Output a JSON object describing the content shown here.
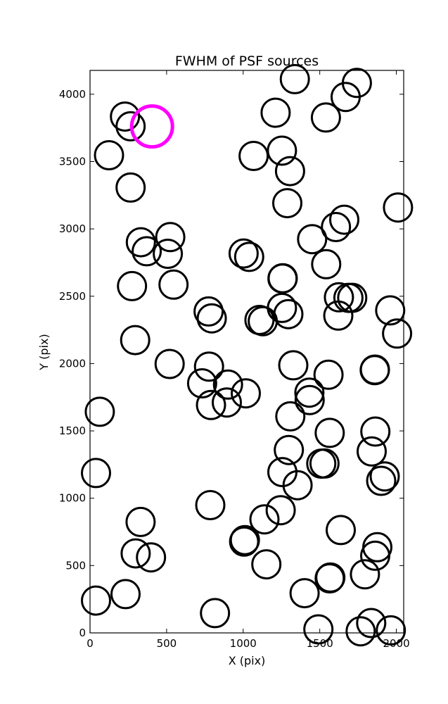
{
  "chart_data": {
    "type": "scatter",
    "title": "FWHM of PSF sources",
    "xlabel": "X (pix)",
    "ylabel": "Y (pix)",
    "xlim": [
      0,
      2048
    ],
    "ylim": [
      0,
      4177
    ],
    "grid": false,
    "legend": "none",
    "x_ticks": [
      0,
      500,
      1000,
      1500,
      2000
    ],
    "y_ticks": [
      0,
      500,
      1000,
      1500,
      2000,
      2500,
      3000,
      3500,
      4000
    ],
    "marker": "hollow circle",
    "series": [
      {
        "color": "#000000",
        "points": [
          {
            "x": 228,
            "y": 3834
          },
          {
            "x": 265,
            "y": 3762
          },
          {
            "x": 124,
            "y": 3547
          },
          {
            "x": 265,
            "y": 3307
          },
          {
            "x": 332,
            "y": 2901
          },
          {
            "x": 370,
            "y": 2834
          },
          {
            "x": 524,
            "y": 2939
          },
          {
            "x": 508,
            "y": 2815
          },
          {
            "x": 274,
            "y": 2575
          },
          {
            "x": 545,
            "y": 2586
          },
          {
            "x": 295,
            "y": 2174
          },
          {
            "x": 520,
            "y": 1997
          },
          {
            "x": 64,
            "y": 1642
          },
          {
            "x": 39,
            "y": 1187
          },
          {
            "x": 330,
            "y": 824
          },
          {
            "x": 298,
            "y": 590
          },
          {
            "x": 398,
            "y": 561
          },
          {
            "x": 232,
            "y": 288
          },
          {
            "x": 39,
            "y": 240
          },
          {
            "x": 774,
            "y": 2387
          },
          {
            "x": 795,
            "y": 2336
          },
          {
            "x": 732,
            "y": 1853
          },
          {
            "x": 777,
            "y": 1977
          },
          {
            "x": 790,
            "y": 1692
          },
          {
            "x": 901,
            "y": 1844
          },
          {
            "x": 893,
            "y": 1711
          },
          {
            "x": 1017,
            "y": 1779
          },
          {
            "x": 785,
            "y": 949
          },
          {
            "x": 1003,
            "y": 2817
          },
          {
            "x": 1039,
            "y": 2792
          },
          {
            "x": 1068,
            "y": 3542
          },
          {
            "x": 1011,
            "y": 689
          },
          {
            "x": 1006,
            "y": 678
          },
          {
            "x": 1139,
            "y": 843
          },
          {
            "x": 1245,
            "y": 911
          },
          {
            "x": 1151,
            "y": 509
          },
          {
            "x": 816,
            "y": 147
          },
          {
            "x": 1212,
            "y": 3863
          },
          {
            "x": 1253,
            "y": 3581
          },
          {
            "x": 1306,
            "y": 3429
          },
          {
            "x": 1288,
            "y": 3191
          },
          {
            "x": 1337,
            "y": 4112
          },
          {
            "x": 1258,
            "y": 2634
          },
          {
            "x": 1257,
            "y": 2631
          },
          {
            "x": 1253,
            "y": 2413
          },
          {
            "x": 1295,
            "y": 2367
          },
          {
            "x": 1106,
            "y": 2324
          },
          {
            "x": 1128,
            "y": 2315
          },
          {
            "x": 1327,
            "y": 1987
          },
          {
            "x": 1308,
            "y": 1608
          },
          {
            "x": 1432,
            "y": 1784
          },
          {
            "x": 1434,
            "y": 1729
          },
          {
            "x": 1298,
            "y": 1358
          },
          {
            "x": 1256,
            "y": 1194
          },
          {
            "x": 1355,
            "y": 1097
          },
          {
            "x": 1401,
            "y": 295
          },
          {
            "x": 1491,
            "y": 26
          },
          {
            "x": 1450,
            "y": 2924
          },
          {
            "x": 1540,
            "y": 3827
          },
          {
            "x": 1669,
            "y": 3980
          },
          {
            "x": 1742,
            "y": 4084
          },
          {
            "x": 1606,
            "y": 3014
          },
          {
            "x": 1660,
            "y": 3068
          },
          {
            "x": 1542,
            "y": 2738
          },
          {
            "x": 1625,
            "y": 2492
          },
          {
            "x": 1687,
            "y": 2488
          },
          {
            "x": 1712,
            "y": 2488
          },
          {
            "x": 1621,
            "y": 2356
          },
          {
            "x": 1557,
            "y": 1917
          },
          {
            "x": 1859,
            "y": 1951
          },
          {
            "x": 1860,
            "y": 1955
          },
          {
            "x": 1565,
            "y": 1485
          },
          {
            "x": 1510,
            "y": 1257
          },
          {
            "x": 1531,
            "y": 1258
          },
          {
            "x": 1637,
            "y": 764
          },
          {
            "x": 1569,
            "y": 411
          },
          {
            "x": 1565,
            "y": 405
          },
          {
            "x": 1863,
            "y": 1495
          },
          {
            "x": 1839,
            "y": 1347
          },
          {
            "x": 1924,
            "y": 1162
          },
          {
            "x": 1901,
            "y": 1129
          },
          {
            "x": 1876,
            "y": 636
          },
          {
            "x": 1862,
            "y": 573
          },
          {
            "x": 1795,
            "y": 435
          },
          {
            "x": 1767,
            "y": 12
          },
          {
            "x": 1836,
            "y": 73
          },
          {
            "x": 1964,
            "y": 19
          },
          {
            "x": 1960,
            "y": 2395
          },
          {
            "x": 2005,
            "y": 2223
          },
          {
            "x": 2011,
            "y": 3159
          }
        ]
      },
      {
        "color": "#ff00ff",
        "points": [
          {
            "x": 405,
            "y": 3761
          }
        ]
      }
    ]
  }
}
